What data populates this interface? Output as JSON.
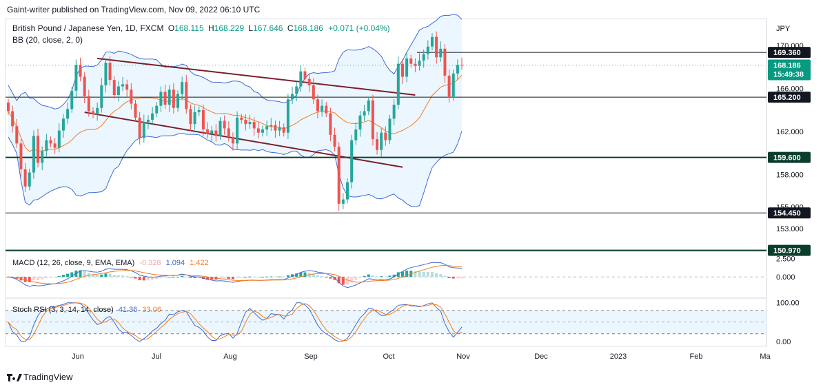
{
  "publisher": "Gaint-writer published on TradingView.com, Nov 09, 2022 06:10 UTC",
  "footer_brand": "TradingView",
  "currency": "JPY",
  "colors": {
    "up": "#26a69a",
    "down": "#ef5350",
    "bb": "#3d6ad6",
    "basis": "#f57c1f",
    "trend": "#7b1f28",
    "level": "#0b3d2e"
  },
  "chart_data": [
    {
      "type": "candlestick",
      "title": "British Pound / Japanese Yen, 1D, FXCM",
      "ohlc": {
        "O": "O",
        "O_val": "168.115",
        "H": "H",
        "H_val": "168.229",
        "L": "L",
        "L_val": "167.646",
        "C": "C",
        "C_val": "168.186",
        "chg": "+0.071 (+0.04%)"
      },
      "indicator_label": "BB (20, close, 2, 0)",
      "x_ticks": [
        "Jun",
        "Jul",
        "Aug",
        "Sep",
        "Oct",
        "Nov",
        "Dec",
        "2023",
        "Feb",
        "Ma"
      ],
      "y_ticks": [
        "170.000",
        "166.000",
        "162.000",
        "158.000",
        "155.000",
        "153.000"
      ],
      "ylim": [
        151.2,
        172.5
      ],
      "price_tags": [
        {
          "label": "169.360",
          "style": "level"
        },
        {
          "label": "168.186",
          "style": "last",
          "sub": "15:49:38"
        },
        {
          "label": "165.200",
          "style": "level"
        },
        {
          "label": "159.600",
          "style": "major"
        },
        {
          "label": "154.450",
          "style": "level"
        },
        {
          "label": "150.970",
          "style": "major"
        }
      ],
      "closes": [
        163.9,
        162.5,
        160.9,
        158.5,
        156.9,
        158.2,
        161.6,
        159.1,
        160.2,
        161.2,
        160.9,
        160.5,
        162.1,
        163.2,
        164.1,
        165.8,
        168.2,
        167.1,
        165.3,
        163.9,
        163.6,
        164.2,
        166.3,
        168.4,
        166.8,
        165.4,
        166.2,
        166.4,
        165.9,
        164.6,
        163.3,
        161.4,
        162.9,
        163.1,
        163.7,
        164.4,
        165.7,
        164.5,
        165.9,
        164.2,
        165.5,
        166.6,
        164.1,
        162.7,
        163.8,
        164.0,
        162.2,
        161.8,
        162.1,
        161.6,
        163.0,
        162.3,
        161.5,
        160.9,
        163.3,
        163.1,
        162.7,
        162.9,
        162.3,
        161.9,
        162.2,
        162.5,
        162.6,
        162.1,
        162.4,
        161.9,
        165.0,
        165.5,
        166.2,
        167.6,
        166.9,
        166.3,
        165.0,
        163.9,
        164.4,
        163.7,
        161.7,
        160.6,
        155.3,
        155.7,
        157.3,
        161.2,
        162.2,
        163.5,
        163.9,
        164.9,
        161.3,
        160.3,
        161.9,
        161.2,
        163.2,
        164.5,
        168.3,
        167.1,
        168.8,
        168.3,
        168.1,
        168.6,
        169.2,
        169.9,
        170.8,
        168.9,
        169.7,
        167.2,
        165.2,
        167.4,
        168.2,
        168.186
      ]
    },
    {
      "type": "line",
      "title": "MACD (12, 26, close, 9, EMA, EMA)",
      "values": {
        "hist": "-0.328",
        "macd": "1.094",
        "signal": "1.422"
      },
      "y_ticks": [
        "2.500",
        "0.000"
      ]
    },
    {
      "type": "line",
      "title": "Stoch RSI (3, 3, 14, 14, close)",
      "values": {
        "k": "41.36",
        "d": "33.06"
      },
      "y_ticks": [
        "100.00",
        "0.00"
      ]
    }
  ]
}
